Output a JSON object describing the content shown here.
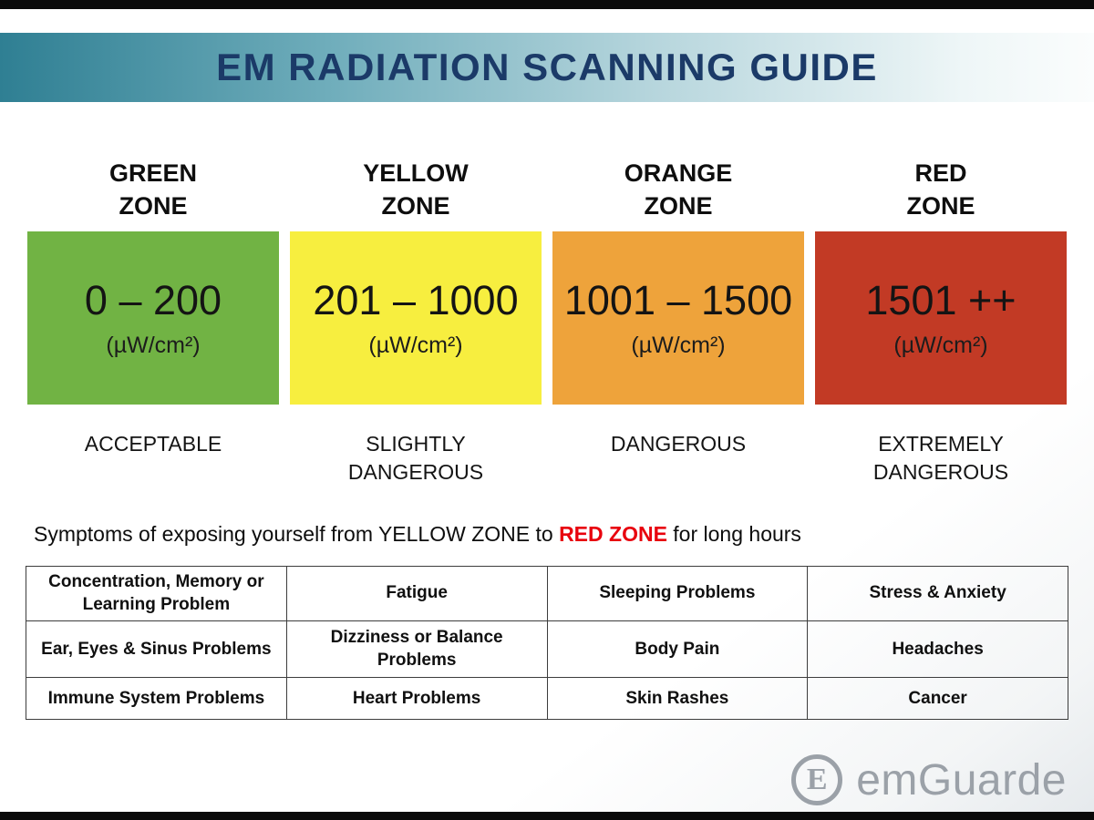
{
  "header": {
    "title": "EM RADIATION SCANNING GUIDE",
    "title_color": "#1b3a68"
  },
  "zones": [
    {
      "name": "GREEN\nZONE",
      "range": "0 – 200",
      "unit": "(µW/cm²)",
      "severity": "ACCEPTABLE",
      "color": "#71b344"
    },
    {
      "name": "YELLOW\nZONE",
      "range": "201 – 1000",
      "unit": "(µW/cm²)",
      "severity": "SLIGHTLY\nDANGEROUS",
      "color": "#f7ee3f"
    },
    {
      "name": "ORANGE\nZONE",
      "range": "1001 – 1500",
      "unit": "(µW/cm²)",
      "severity": "DANGEROUS",
      "color": "#eea33b"
    },
    {
      "name": "RED\nZONE",
      "range": "1501 ++",
      "unit": "(µW/cm²)",
      "severity": "EXTREMELY\nDANGEROUS",
      "color": "#c23a25"
    }
  ],
  "symptoms": {
    "intro_before": "Symptoms of exposing yourself from YELLOW ZONE to ",
    "intro_highlight": "RED ZONE",
    "intro_after": " for long hours",
    "highlight_color": "#e8000d",
    "rows": [
      [
        "Concentration, Memory or Learning Problem",
        "Fatigue",
        "Sleeping Problems",
        "Stress & Anxiety"
      ],
      [
        "Ear, Eyes & Sinus Problems",
        "Dizziness or Balance Problems",
        "Body Pain",
        "Headaches"
      ],
      [
        "Immune System Problems",
        "Heart Problems",
        "Skin Rashes",
        "Cancer"
      ]
    ]
  },
  "logo": {
    "brand": "emGuarde",
    "icon_letter": "E",
    "color": "#9ba1a8"
  }
}
